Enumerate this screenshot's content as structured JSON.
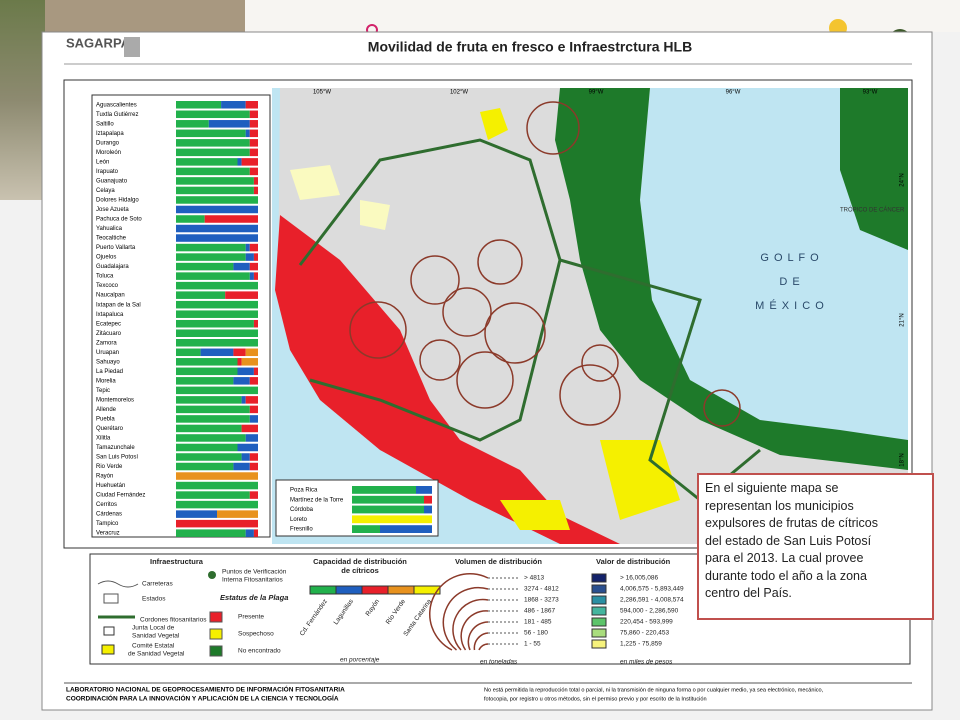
{
  "header": {
    "org": "SAGARPA",
    "title": "Movilidad de fruta en fresco e Infraestrctura HLB"
  },
  "map": {
    "lon_labels": [
      "105°W",
      "102°W",
      "99°W",
      "96°W",
      "93°W"
    ],
    "lat_labels": [
      "24°N",
      "21°N",
      "18°N"
    ],
    "sea_label": [
      "G O L F O",
      "D E",
      "M É X I C O"
    ],
    "tropic": "TRÓPICO DE CÁNCER"
  },
  "distribution": {
    "segment_colors": [
      "#22b14c",
      "#1f5fbf",
      "#e8202a",
      "#e8921e",
      "#f5f000"
    ],
    "rows": [
      {
        "name": "Aguascalientes",
        "shares": [
          55,
          30,
          15,
          0,
          0
        ]
      },
      {
        "name": "Tuxtla Gutiérrez",
        "shares": [
          90,
          0,
          10,
          0,
          0
        ]
      },
      {
        "name": "Saltillo",
        "shares": [
          40,
          50,
          10,
          0,
          0
        ]
      },
      {
        "name": "Iztapalapa",
        "shares": [
          85,
          5,
          10,
          0,
          0
        ]
      },
      {
        "name": "Durango",
        "shares": [
          90,
          0,
          10,
          0,
          0
        ]
      },
      {
        "name": "Moroleón",
        "shares": [
          90,
          0,
          10,
          0,
          0
        ]
      },
      {
        "name": "León",
        "shares": [
          75,
          5,
          20,
          0,
          0
        ]
      },
      {
        "name": "Irapuato",
        "shares": [
          90,
          0,
          10,
          0,
          0
        ]
      },
      {
        "name": "Guanajuato",
        "shares": [
          95,
          0,
          5,
          0,
          0
        ]
      },
      {
        "name": "Celaya",
        "shares": [
          95,
          0,
          5,
          0,
          0
        ]
      },
      {
        "name": "Dolores Hidalgo",
        "shares": [
          100,
          0,
          0,
          0,
          0
        ]
      },
      {
        "name": "Jose Azueta",
        "shares": [
          0,
          100,
          0,
          0,
          0
        ]
      },
      {
        "name": "Pachuca de Soto",
        "shares": [
          35,
          0,
          65,
          0,
          0
        ]
      },
      {
        "name": "Yahualica",
        "shares": [
          0,
          100,
          0,
          0,
          0
        ]
      },
      {
        "name": "Teocaltiche",
        "shares": [
          0,
          100,
          0,
          0,
          0
        ]
      },
      {
        "name": "Puerto Vallarta",
        "shares": [
          85,
          5,
          10,
          0,
          0
        ]
      },
      {
        "name": "Ojuelos",
        "shares": [
          85,
          10,
          5,
          0,
          0
        ]
      },
      {
        "name": "Guadalajara",
        "shares": [
          70,
          20,
          10,
          0,
          0
        ]
      },
      {
        "name": "Toluca",
        "shares": [
          90,
          5,
          5,
          0,
          0
        ]
      },
      {
        "name": "Texcoco",
        "shares": [
          100,
          0,
          0,
          0,
          0
        ]
      },
      {
        "name": "Naucalpan",
        "shares": [
          60,
          0,
          40,
          0,
          0
        ]
      },
      {
        "name": "Ixtapan de la Sal",
        "shares": [
          100,
          0,
          0,
          0,
          0
        ]
      },
      {
        "name": "Ixtapaluca",
        "shares": [
          100,
          0,
          0,
          0,
          0
        ]
      },
      {
        "name": "Ecatepec",
        "shares": [
          95,
          0,
          5,
          0,
          0
        ]
      },
      {
        "name": "Zitácuaro",
        "shares": [
          100,
          0,
          0,
          0,
          0
        ]
      },
      {
        "name": "Zamora",
        "shares": [
          100,
          0,
          0,
          0,
          0
        ]
      },
      {
        "name": "Uruapan",
        "shares": [
          30,
          40,
          15,
          15,
          0
        ]
      },
      {
        "name": "Sahuayo",
        "shares": [
          75,
          0,
          5,
          20,
          0
        ]
      },
      {
        "name": "La Piedad",
        "shares": [
          75,
          20,
          5,
          0,
          0
        ]
      },
      {
        "name": "Morelia",
        "shares": [
          70,
          20,
          10,
          0,
          0
        ]
      },
      {
        "name": "Tepic",
        "shares": [
          100,
          0,
          0,
          0,
          0
        ]
      },
      {
        "name": "Montemorelos",
        "shares": [
          80,
          5,
          15,
          0,
          0
        ]
      },
      {
        "name": "Allende",
        "shares": [
          90,
          0,
          10,
          0,
          0
        ]
      },
      {
        "name": "Puebla",
        "shares": [
          90,
          10,
          0,
          0,
          0
        ]
      },
      {
        "name": "Querétaro",
        "shares": [
          80,
          0,
          20,
          0,
          0
        ]
      },
      {
        "name": "Xilitla",
        "shares": [
          85,
          15,
          0,
          0,
          0
        ]
      },
      {
        "name": "Tamazunchale",
        "shares": [
          75,
          25,
          0,
          0,
          0
        ]
      },
      {
        "name": "San Luis Potosí",
        "shares": [
          80,
          10,
          10,
          0,
          0
        ]
      },
      {
        "name": "Rio Verde",
        "shares": [
          70,
          20,
          10,
          0,
          0
        ]
      },
      {
        "name": "Rayón",
        "shares": [
          0,
          0,
          0,
          100,
          0
        ]
      },
      {
        "name": "Huehuetán",
        "shares": [
          100,
          0,
          0,
          0,
          0
        ]
      },
      {
        "name": "Ciudad Fernández",
        "shares": [
          90,
          0,
          10,
          0,
          0
        ]
      },
      {
        "name": "Cerritos",
        "shares": [
          100,
          0,
          0,
          0,
          0
        ]
      },
      {
        "name": "Cárdenas",
        "shares": [
          0,
          50,
          0,
          50,
          0
        ]
      },
      {
        "name": "Tampico",
        "shares": [
          0,
          0,
          100,
          0,
          0
        ]
      },
      {
        "name": "Veracruz",
        "shares": [
          85,
          10,
          5,
          0,
          0
        ]
      }
    ],
    "inset_rows": [
      {
        "name": "Poza Rica",
        "shares": [
          80,
          20,
          0,
          0,
          0
        ]
      },
      {
        "name": "Martínez de la Torre",
        "shares": [
          90,
          0,
          10,
          0,
          0
        ]
      },
      {
        "name": "Córdoba",
        "shares": [
          90,
          10,
          0,
          0,
          0
        ]
      },
      {
        "name": "Loreto",
        "shares": [
          0,
          0,
          0,
          0,
          100
        ]
      },
      {
        "name": "Fresnillo",
        "shares": [
          35,
          65,
          0,
          0,
          0
        ]
      }
    ]
  },
  "legend": {
    "infra_title": "Infraestructura",
    "roads": "Carreteras",
    "states": "Estados",
    "cordons": "Cordones fitosanitarios",
    "checkpoints": [
      "Puntos de Verificación",
      "Interna Fitosanitarios"
    ],
    "pest_status": "Estatus de la Plaga",
    "present": "Presente",
    "suspect": "Sospechoso",
    "not_found": "No encontrado",
    "local_board": [
      "Junta Local de",
      "Sanidad Vegetal"
    ],
    "state_committee": [
      "Comité Estatal",
      "de Sanidad Vegetal"
    ],
    "capacity_title": [
      "Capacidad de distribución",
      "de cítricos"
    ],
    "capacity_sources": [
      "Cd. Fernández",
      "Lagunillas",
      "Rayón",
      "Río Verde",
      "Santa Catarina"
    ],
    "capacity_unit": "en porcentaje",
    "volume_title": "Volumen de distribución",
    "volume_ranges": [
      "> 4813",
      "3274 - 4812",
      "1868 - 3273",
      "486 - 1867",
      "181 - 485",
      "56 - 180",
      "1 - 55"
    ],
    "volume_unit": "en toneladas",
    "value_title": "Valor de distribución",
    "value_ranges": [
      "> 16,005,086",
      "4,006,575 - 5,893,449",
      "2,286,591 - 4,008,574",
      "594,000 - 2,286,590",
      "220,454 - 593,999",
      "75,860 - 220,453",
      "1,225 - 75,859"
    ],
    "value_colors": [
      "#14236b",
      "#2a4f8f",
      "#2a8fa3",
      "#44b59e",
      "#5cc46a",
      "#a9dd7d",
      "#f6f27c"
    ],
    "value_unit": "en miles de pesos"
  },
  "callout": [
    "En el siguiente mapa se",
    "representan los municipios",
    "expulsores de frutas  de cítricos",
    "del estado de San Luis Potosí",
    "para el 2013. La cual provee",
    "durante todo el año  a la zona",
    "centro del País."
  ],
  "footer": {
    "lab": "LABORATORIO NACIONAL DE GEOPROCESAMIENTO DE INFORMACIÓN FITOSANITARIA",
    "coord": "COORDINACIÓN PARA LA INNOVACIÓN Y APLICACIÓN DE LA CIENCIA Y TECNOLOGÍA",
    "notice": [
      "No está permitida la reproducción total o parcial, ni la transmisión de ninguna forma o por cualquier medio, ya sea electrónico, mecánico,",
      "fotocopia, por registro u otros métodos, sin el permiso previo y por escrito de la Institución"
    ]
  }
}
